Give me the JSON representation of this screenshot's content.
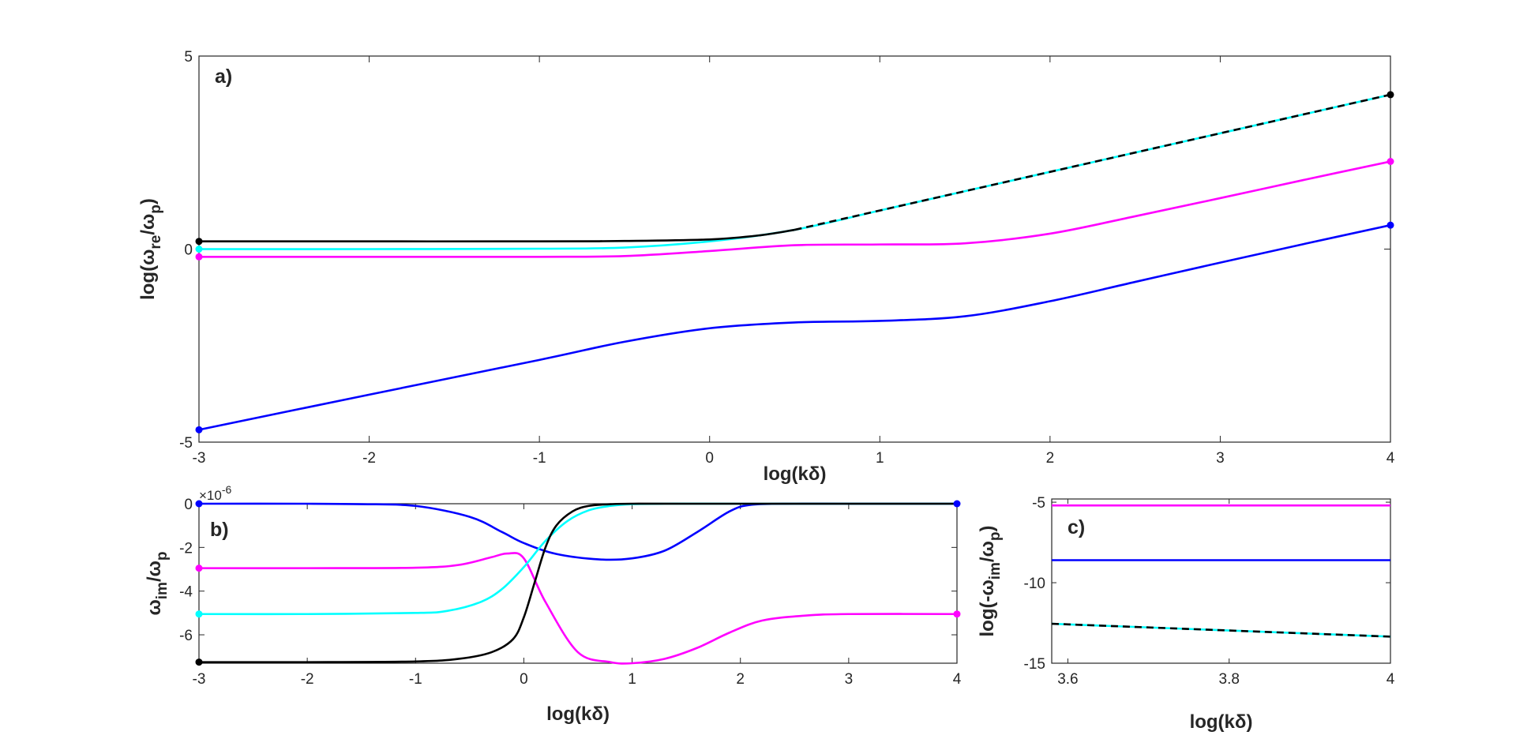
{
  "chart_data": [
    {
      "panel": "a)",
      "type": "line",
      "title": "",
      "xlabel": "log(kδ)",
      "ylabel": "log(ω_re/ω_p)",
      "ylabel_parts": {
        "pre": "log(ω",
        "sub": "re",
        "mid": "/ω",
        "sub2": "p",
        "post": ")"
      },
      "xlim": [
        -3,
        4
      ],
      "ylim": [
        -5,
        5
      ],
      "xticks": [
        -3,
        -2,
        -1,
        0,
        1,
        2,
        3,
        4
      ],
      "yticks": [
        -5,
        0,
        5
      ],
      "grid": false,
      "series": [
        {
          "color": "#0000ff",
          "style": "solid",
          "x": [
            -3,
            -2,
            -1,
            -0.5,
            0,
            0.5,
            1,
            1.5,
            2,
            2.5,
            3,
            3.5,
            4
          ],
          "y": [
            -4.68,
            -3.77,
            -2.87,
            -2.4,
            -2.05,
            -1.9,
            -1.86,
            -1.74,
            -1.35,
            -0.85,
            -0.35,
            0.14,
            0.62
          ]
        },
        {
          "color": "#ff00ff",
          "style": "solid",
          "x": [
            -3,
            -2,
            -1,
            -0.5,
            0,
            0.5,
            1,
            1.5,
            2,
            2.5,
            3,
            3.5,
            4
          ],
          "y": [
            -0.2,
            -0.2,
            -0.2,
            -0.18,
            -0.05,
            0.1,
            0.12,
            0.15,
            0.4,
            0.85,
            1.32,
            1.8,
            2.27
          ]
        },
        {
          "color": "#00ffff",
          "style": "solid",
          "x": [
            -3,
            -2,
            -1,
            -0.5,
            0,
            0.5,
            1,
            1.5,
            2,
            2.5,
            3,
            3.5,
            4
          ],
          "y": [
            0,
            0,
            0.01,
            0.04,
            0.2,
            0.5,
            1,
            1.5,
            2,
            2.5,
            3,
            3.5,
            4
          ]
        },
        {
          "color": "#000000",
          "style": "solid",
          "x": [
            -3,
            -2,
            -1,
            -0.5,
            0,
            0.3,
            0.5
          ],
          "y": [
            0.2,
            0.2,
            0.2,
            0.21,
            0.25,
            0.36,
            0.5
          ]
        },
        {
          "color": "#000000",
          "style": "dashed",
          "x": [
            0.5,
            4
          ],
          "y": [
            0.5,
            4
          ]
        }
      ],
      "markers": [
        {
          "x": -3,
          "y": 0.2,
          "color": "#000000"
        },
        {
          "x": -3,
          "y": 0,
          "color": "#00ffff"
        },
        {
          "x": -3,
          "y": -0.2,
          "color": "#ff00ff"
        },
        {
          "x": -3,
          "y": -4.68,
          "color": "#0000ff"
        },
        {
          "x": 4,
          "y": 4,
          "color": "#000000"
        },
        {
          "x": 4,
          "y": 2.27,
          "color": "#ff00ff"
        },
        {
          "x": 4,
          "y": 0.62,
          "color": "#0000ff"
        }
      ]
    },
    {
      "panel": "b)",
      "type": "line",
      "title": "",
      "xlabel": "log(kδ)",
      "ylabel": "ω_im/ω_p",
      "ylabel_parts": {
        "pre": "ω",
        "sub": "im",
        "mid": "/ω",
        "sub2": "p",
        "post": ""
      },
      "exponent_label": {
        "base": "×10",
        "exp": "-6"
      },
      "xlim": [
        -3,
        4
      ],
      "ylim": [
        -7.3,
        0
      ],
      "xticks": [
        -3,
        -2,
        -1,
        0,
        1,
        2,
        3,
        4
      ],
      "yticks": [
        -6,
        -4,
        -2,
        0
      ],
      "grid": false,
      "series": [
        {
          "color": "#0000ff",
          "style": "solid",
          "x": [
            -3,
            -2,
            -1.5,
            -1,
            -0.5,
            -0.2,
            0,
            0.3,
            0.7,
            1,
            1.3,
            1.6,
            1.9,
            2.1,
            2.5,
            3,
            4
          ],
          "y": [
            0,
            0,
            -0.02,
            -0.1,
            -0.6,
            -1.3,
            -1.8,
            -2.3,
            -2.55,
            -2.5,
            -2.15,
            -1.3,
            -0.35,
            -0.05,
            0,
            0,
            0
          ]
        },
        {
          "color": "#ff00ff",
          "style": "solid",
          "x": [
            -3,
            -2,
            -1,
            -0.6,
            -0.3,
            -0.15,
            0,
            0.2,
            0.5,
            0.8,
            1,
            1.3,
            1.6,
            1.9,
            2.2,
            2.6,
            3,
            4
          ],
          "y": [
            -2.95,
            -2.95,
            -2.93,
            -2.8,
            -2.45,
            -2.28,
            -2.5,
            -4.5,
            -6.8,
            -7.25,
            -7.3,
            -7.1,
            -6.6,
            -5.9,
            -5.35,
            -5.12,
            -5.05,
            -5.05
          ]
        },
        {
          "color": "#00ffff",
          "style": "solid",
          "x": [
            -3,
            -2,
            -1,
            -0.7,
            -0.4,
            -0.2,
            0,
            0.2,
            0.4,
            0.6,
            0.8,
            1,
            1.3,
            2,
            4
          ],
          "y": [
            -5.05,
            -5.05,
            -5.0,
            -4.9,
            -4.5,
            -3.9,
            -2.9,
            -1.7,
            -0.8,
            -0.3,
            -0.1,
            -0.02,
            0,
            0,
            0
          ]
        },
        {
          "color": "#000000",
          "style": "solid",
          "x": [
            -3,
            -2,
            -1,
            -0.6,
            -0.3,
            -0.1,
            0,
            0.1,
            0.2,
            0.3,
            0.45,
            0.6,
            0.8,
            1,
            1.5,
            4
          ],
          "y": [
            -7.25,
            -7.25,
            -7.22,
            -7.1,
            -6.8,
            -6.2,
            -5.2,
            -3.6,
            -2.0,
            -1.0,
            -0.35,
            -0.1,
            -0.02,
            0,
            0,
            0
          ]
        }
      ],
      "markers": [
        {
          "x": -3,
          "y": 0,
          "color": "#0000ff"
        },
        {
          "x": -3,
          "y": -2.95,
          "color": "#ff00ff"
        },
        {
          "x": -3,
          "y": -5.05,
          "color": "#00ffff"
        },
        {
          "x": -3,
          "y": -7.25,
          "color": "#000000"
        },
        {
          "x": 4,
          "y": 0,
          "color": "#0000ff"
        },
        {
          "x": 4,
          "y": -5.05,
          "color": "#ff00ff"
        }
      ]
    },
    {
      "panel": "c)",
      "type": "line",
      "title": "",
      "xlabel": "log(kδ)",
      "ylabel": "log(-ω_im/ω_p)",
      "ylabel_parts": {
        "pre": "log(-ω",
        "sub": "im",
        "mid": "/ω",
        "sub2": "p",
        "post": ")"
      },
      "xlim": [
        3.58,
        4
      ],
      "ylim": [
        -15,
        -4.8
      ],
      "xticks": [
        3.6,
        3.8,
        4
      ],
      "yticks": [
        -15,
        -10,
        -5
      ],
      "grid": false,
      "series": [
        {
          "color": "#ff00ff",
          "style": "solid",
          "x": [
            3.58,
            4
          ],
          "y": [
            -5.2,
            -5.2
          ]
        },
        {
          "color": "#0000ff",
          "style": "solid",
          "x": [
            3.58,
            4
          ],
          "y": [
            -8.6,
            -8.6
          ]
        },
        {
          "color": "#00ffff",
          "style": "solid",
          "x": [
            3.58,
            4
          ],
          "y": [
            -12.55,
            -13.35
          ]
        },
        {
          "color": "#000000",
          "style": "dashed",
          "x": [
            3.58,
            4
          ],
          "y": [
            -12.55,
            -13.35
          ]
        }
      ],
      "markers": []
    }
  ]
}
